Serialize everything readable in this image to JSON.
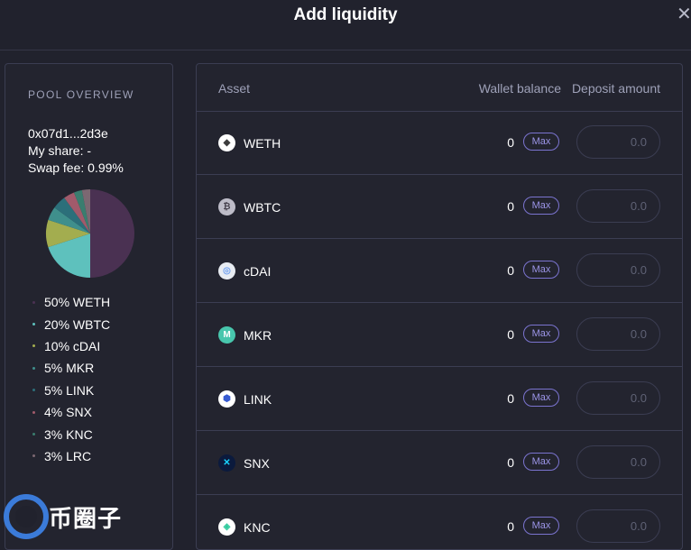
{
  "modal": {
    "title": "Add liquidity",
    "close_icon": "close-icon"
  },
  "overview": {
    "heading": "POOL OVERVIEW",
    "address": "0x07d1...2d3e",
    "my_share": "My share: -",
    "swap_fee": "Swap fee: 0.99%",
    "allocations": [
      {
        "label": "50% WETH",
        "percent": 50,
        "color": "#4a3152"
      },
      {
        "label": "20% WBTC",
        "percent": 20,
        "color": "#5ec1bd"
      },
      {
        "label": "10% cDAI",
        "percent": 10,
        "color": "#a3ad4f"
      },
      {
        "label": "5% MKR",
        "percent": 5,
        "color": "#3f8f8c"
      },
      {
        "label": "5% LINK",
        "percent": 5,
        "color": "#2c6f7a"
      },
      {
        "label": "4% SNX",
        "percent": 4,
        "color": "#a15a6b"
      },
      {
        "label": "3% KNC",
        "percent": 3,
        "color": "#3a7d6f"
      },
      {
        "label": "3% LRC",
        "percent": 3,
        "color": "#7c6872"
      }
    ]
  },
  "table": {
    "headers": {
      "asset": "Asset",
      "wallet": "Wallet balance",
      "deposit": "Deposit amount"
    },
    "max_label": "Max",
    "rows": [
      {
        "symbol": "WETH",
        "balance": "0",
        "placeholder": "0.0",
        "icon": "eth-icon"
      },
      {
        "symbol": "WBTC",
        "balance": "0",
        "placeholder": "0.0",
        "icon": "btc-icon"
      },
      {
        "symbol": "cDAI",
        "balance": "0",
        "placeholder": "0.0",
        "icon": "cdai-icon"
      },
      {
        "symbol": "MKR",
        "balance": "0",
        "placeholder": "0.0",
        "icon": "mkr-icon"
      },
      {
        "symbol": "LINK",
        "balance": "0",
        "placeholder": "0.0",
        "icon": "link-icon"
      },
      {
        "symbol": "SNX",
        "balance": "0",
        "placeholder": "0.0",
        "icon": "snx-icon"
      },
      {
        "symbol": "KNC",
        "balance": "0",
        "placeholder": "0.0",
        "icon": "knc-icon"
      }
    ]
  },
  "watermark": {
    "text": "币圈子"
  }
}
